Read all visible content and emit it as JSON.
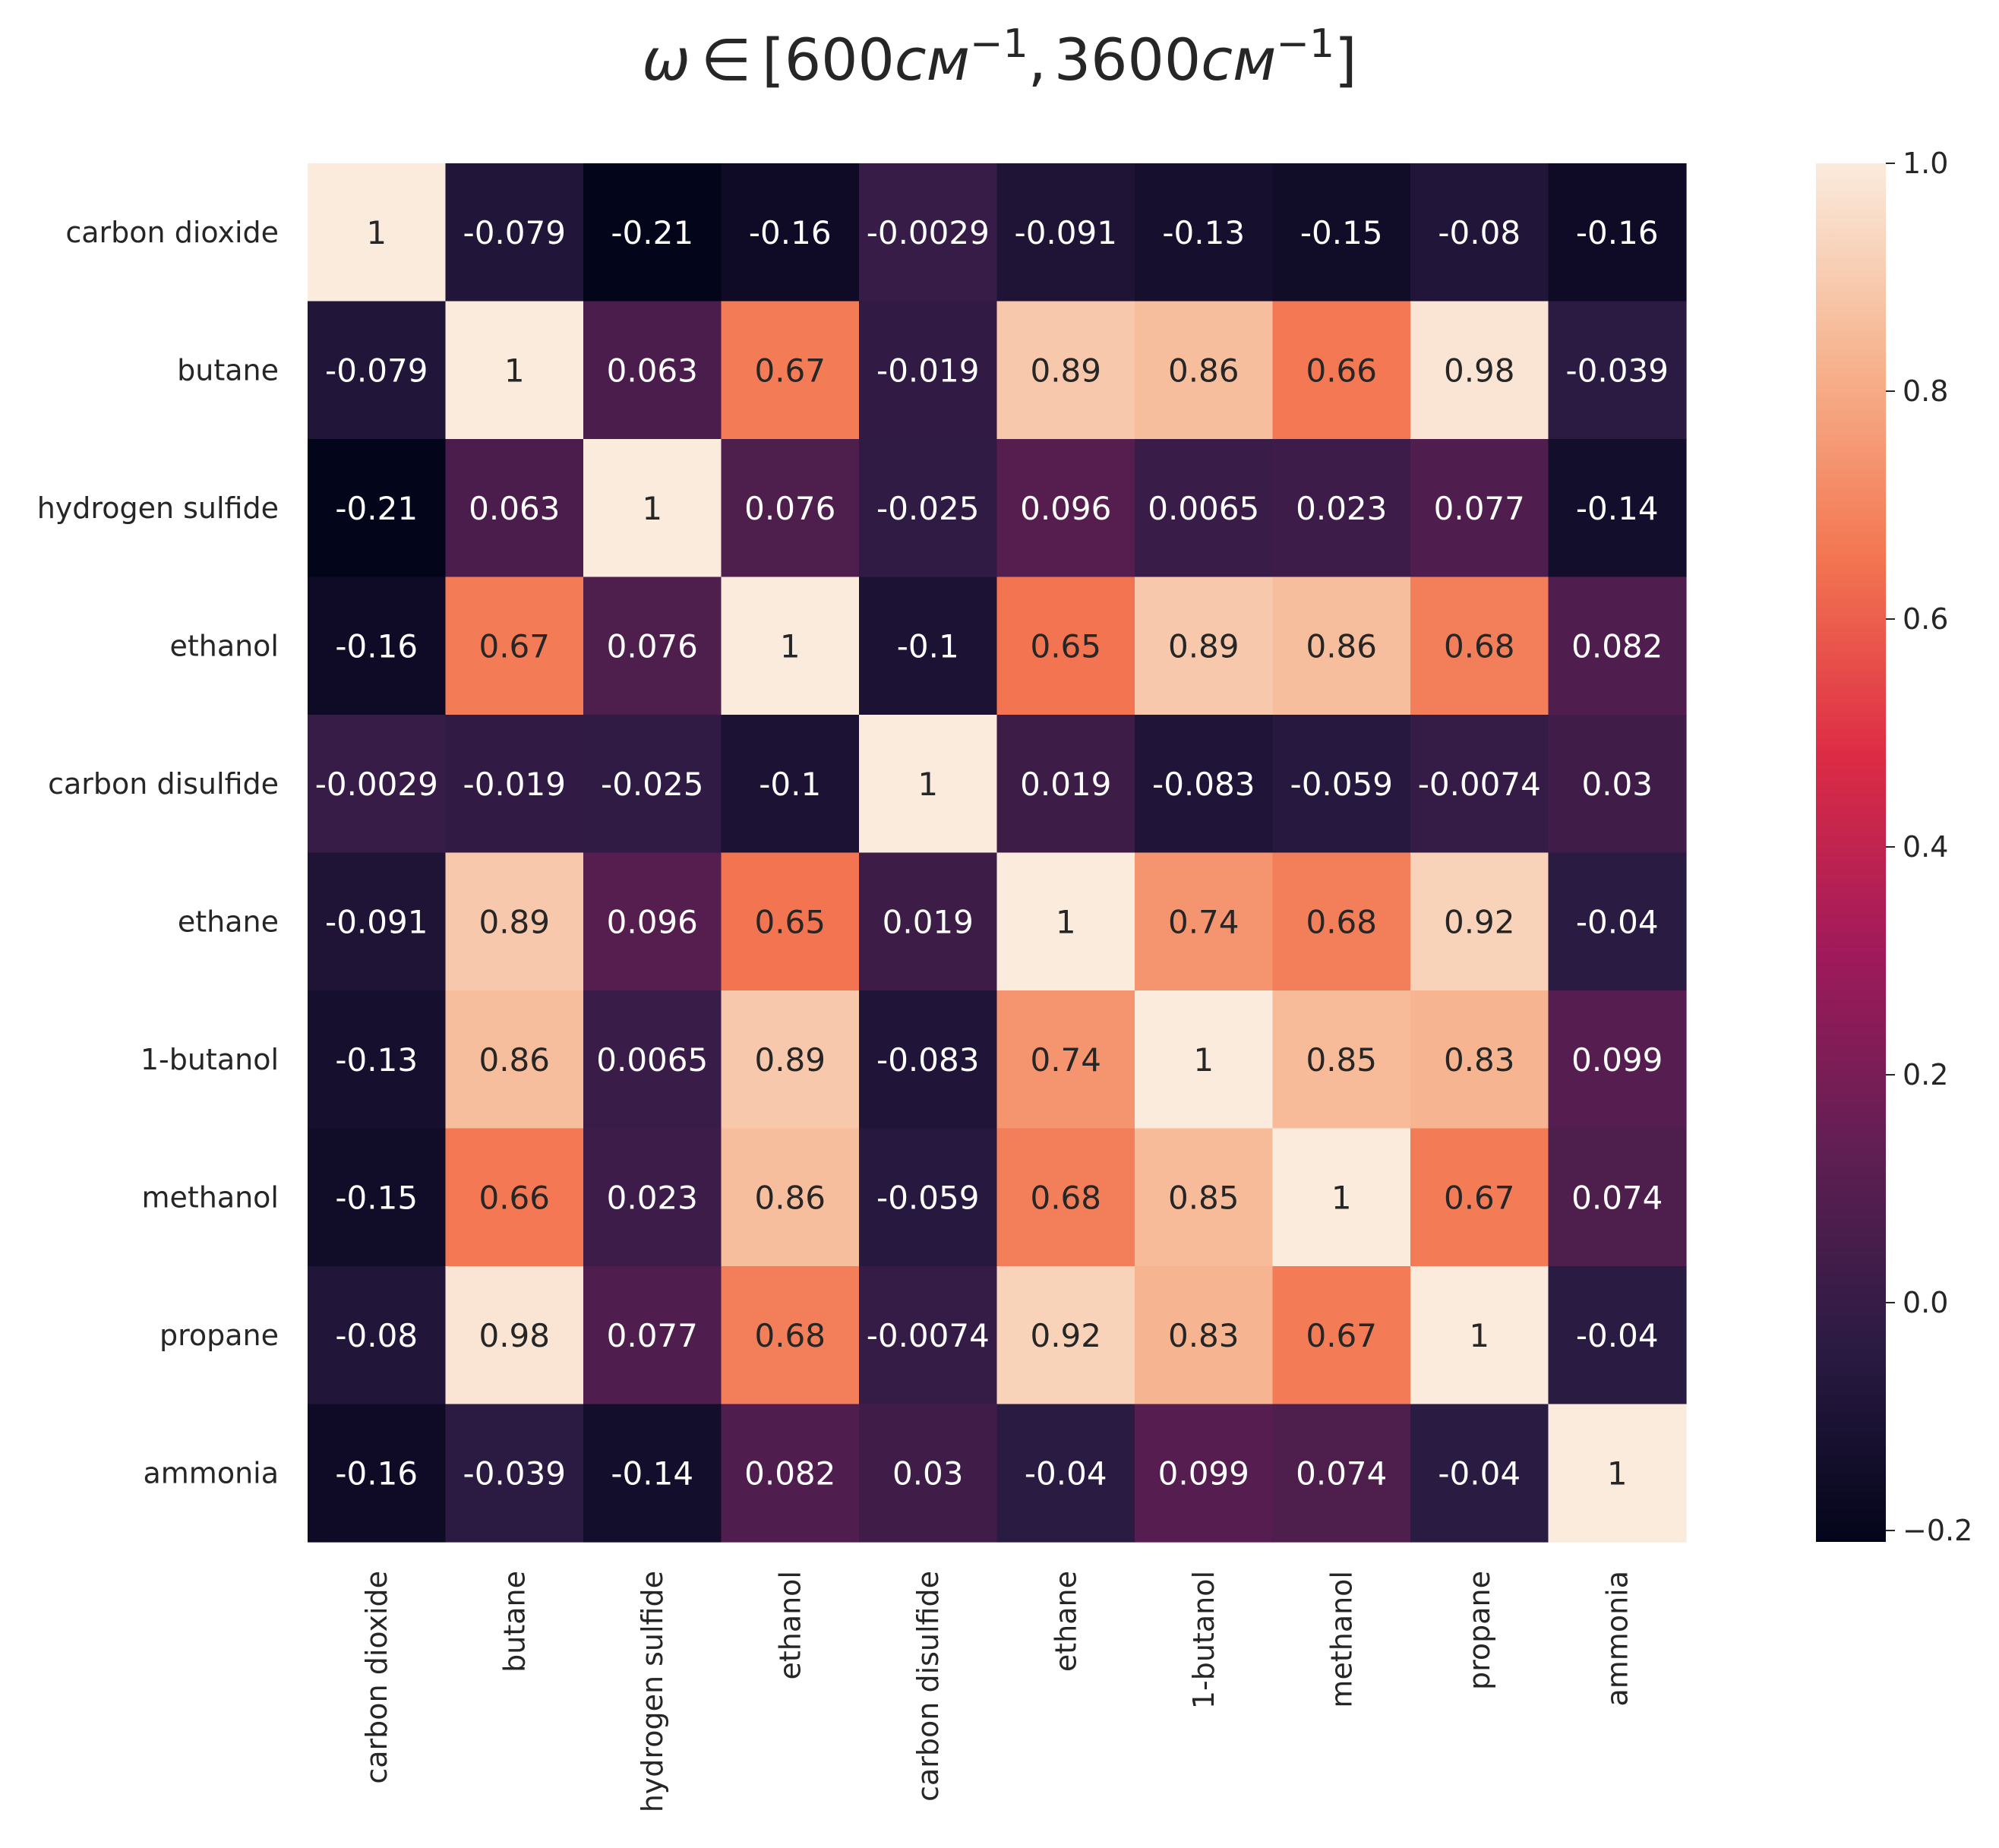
{
  "chart_data": {
    "type": "heatmap",
    "title": {
      "omega": "ω",
      "in": "∈",
      "open": "[",
      "low": "600",
      "sep": ",",
      "high": "3600",
      "close": "]",
      "unit": "см",
      "exponent": "−1"
    },
    "rows": [
      "carbon dioxide",
      "butane",
      "hydrogen sulfide",
      "ethanol",
      "carbon disulfide",
      "ethane",
      "1-butanol",
      "methanol",
      "propane",
      "ammonia"
    ],
    "columns": [
      "carbon dioxide",
      "butane",
      "hydrogen sulfide",
      "ethanol",
      "carbon disulfide",
      "ethane",
      "1-butanol",
      "methanol",
      "propane",
      "ammonia"
    ],
    "values": [
      [
        1,
        -0.079,
        -0.21,
        -0.16,
        -0.0029,
        -0.091,
        -0.13,
        -0.15,
        -0.08,
        -0.16
      ],
      [
        -0.079,
        1,
        0.063,
        0.67,
        -0.019,
        0.89,
        0.86,
        0.66,
        0.98,
        -0.039
      ],
      [
        -0.21,
        0.063,
        1,
        0.076,
        -0.025,
        0.096,
        0.0065,
        0.023,
        0.077,
        -0.14
      ],
      [
        -0.16,
        0.67,
        0.076,
        1,
        -0.1,
        0.65,
        0.89,
        0.86,
        0.68,
        0.082
      ],
      [
        -0.0029,
        -0.019,
        -0.025,
        -0.1,
        1,
        0.019,
        -0.083,
        -0.059,
        -0.0074,
        0.03
      ],
      [
        -0.091,
        0.89,
        0.096,
        0.65,
        0.019,
        1,
        0.74,
        0.68,
        0.92,
        -0.04
      ],
      [
        -0.13,
        0.86,
        0.0065,
        0.89,
        -0.083,
        0.74,
        1,
        0.85,
        0.83,
        0.099
      ],
      [
        -0.15,
        0.66,
        0.023,
        0.86,
        -0.059,
        0.68,
        0.85,
        1,
        0.67,
        0.074
      ],
      [
        -0.08,
        0.98,
        0.077,
        0.68,
        -0.0074,
        0.92,
        0.83,
        0.67,
        1,
        -0.04
      ],
      [
        -0.16,
        -0.039,
        -0.14,
        0.082,
        0.03,
        -0.04,
        0.099,
        0.074,
        -0.04,
        1
      ]
    ],
    "cell_labels": [
      [
        "1",
        "-0.079",
        "-0.21",
        "-0.16",
        "-0.0029",
        "-0.091",
        "-0.13",
        "-0.15",
        "-0.08",
        "-0.16"
      ],
      [
        "-0.079",
        "1",
        "0.063",
        "0.67",
        "-0.019",
        "0.89",
        "0.86",
        "0.66",
        "0.98",
        "-0.039"
      ],
      [
        "-0.21",
        "0.063",
        "1",
        "0.076",
        "-0.025",
        "0.096",
        "0.0065",
        "0.023",
        "0.077",
        "-0.14"
      ],
      [
        "-0.16",
        "0.67",
        "0.076",
        "1",
        "-0.1",
        "0.65",
        "0.89",
        "0.86",
        "0.68",
        "0.082"
      ],
      [
        "-0.0029",
        "-0.019",
        "-0.025",
        "-0.1",
        "1",
        "0.019",
        "-0.083",
        "-0.059",
        "-0.0074",
        "0.03"
      ],
      [
        "-0.091",
        "0.89",
        "0.096",
        "0.65",
        "0.019",
        "1",
        "0.74",
        "0.68",
        "0.92",
        "-0.04"
      ],
      [
        "-0.13",
        "0.86",
        "0.0065",
        "0.89",
        "-0.083",
        "0.74",
        "1",
        "0.85",
        "0.83",
        "0.099"
      ],
      [
        "-0.15",
        "0.66",
        "0.023",
        "0.86",
        "-0.059",
        "0.68",
        "0.85",
        "1",
        "0.67",
        "0.074"
      ],
      [
        "-0.08",
        "0.98",
        "0.077",
        "0.68",
        "-0.0074",
        "0.92",
        "0.83",
        "0.67",
        "1",
        "-0.04"
      ],
      [
        "-0.16",
        "-0.039",
        "-0.14",
        "0.082",
        "0.03",
        "-0.04",
        "0.099",
        "0.074",
        "-0.04",
        "1"
      ]
    ],
    "colorbar": {
      "vmin": -0.21,
      "vmax": 1.0,
      "ticks": [
        -0.2,
        0.0,
        0.2,
        0.4,
        0.6,
        0.8,
        1.0
      ],
      "tick_labels": [
        "−0.2",
        "0.0",
        "0.2",
        "0.4",
        "0.6",
        "0.8",
        "1.0"
      ]
    },
    "colormap": "rocket",
    "colormap_stops": [
      "#03051a",
      "#2b1b43",
      "#611f53",
      "#a11a5b",
      "#dd2c45",
      "#f37651",
      "#f6b48f",
      "#faebdd"
    ],
    "annotation_text_dark": "#262626",
    "annotation_text_light": "#ffffff"
  }
}
